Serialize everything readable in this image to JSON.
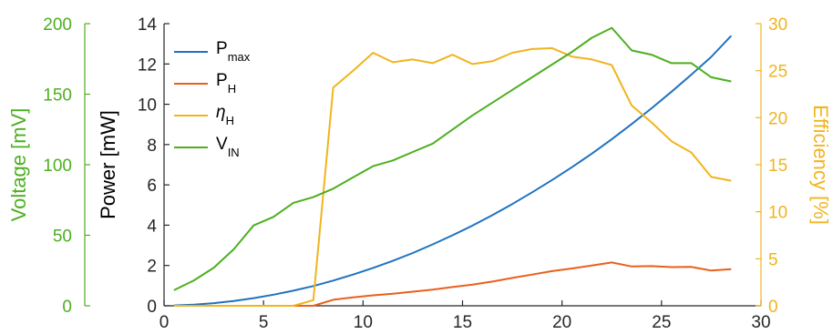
{
  "chart_data": {
    "type": "line",
    "x_axis": {
      "range": [
        0,
        30
      ],
      "ticks": [
        0,
        5,
        10,
        15,
        20,
        25,
        30
      ]
    },
    "y_axes": {
      "power": {
        "label": "Power [mW]",
        "range": [
          0,
          14
        ],
        "ticks": [
          0,
          2,
          4,
          6,
          8,
          10,
          12,
          14
        ],
        "color": "#000000"
      },
      "voltage": {
        "label": "Voltage [mV]",
        "range": [
          0,
          200
        ],
        "ticks": [
          0,
          50,
          100,
          150,
          200
        ],
        "color": "#4daf1f"
      },
      "efficiency": {
        "label": "Efficiency [%]",
        "range": [
          0,
          30
        ],
        "ticks": [
          0,
          5,
          10,
          15,
          20,
          25,
          30
        ],
        "color": "#f0b41e"
      }
    },
    "legend": {
      "placement": "top-left",
      "entries": [
        {
          "main": "P",
          "sub": "max",
          "italic": false,
          "color": "#1f72bf",
          "series": 0
        },
        {
          "main": "P",
          "sub": "H",
          "italic": false,
          "color": "#e8601c",
          "series": 1
        },
        {
          "main": "η",
          "sub": "H",
          "italic": true,
          "color": "#f0b41e",
          "series": 2
        },
        {
          "main": "V",
          "sub": "IN",
          "italic": false,
          "color": "#4daf1f",
          "series": 3
        }
      ]
    },
    "series": [
      {
        "axis": "power",
        "color": "#1f72bf",
        "points": [
          [
            0.5,
            0.02
          ],
          [
            1.5,
            0.06
          ],
          [
            2.5,
            0.13
          ],
          [
            3.5,
            0.24
          ],
          [
            4.5,
            0.38
          ],
          [
            5.5,
            0.55
          ],
          [
            6.5,
            0.75
          ],
          [
            7.5,
            0.98
          ],
          [
            8.5,
            1.25
          ],
          [
            9.5,
            1.55
          ],
          [
            10.5,
            1.88
          ],
          [
            11.5,
            2.23
          ],
          [
            12.5,
            2.62
          ],
          [
            13.5,
            3.05
          ],
          [
            14.5,
            3.5
          ],
          [
            15.5,
            3.98
          ],
          [
            16.5,
            4.5
          ],
          [
            17.5,
            5.05
          ],
          [
            18.5,
            5.63
          ],
          [
            19.5,
            6.24
          ],
          [
            20.5,
            6.88
          ],
          [
            21.5,
            7.55
          ],
          [
            22.5,
            8.27
          ],
          [
            23.5,
            9.02
          ],
          [
            24.5,
            9.8
          ],
          [
            25.5,
            10.62
          ],
          [
            26.5,
            11.47
          ],
          [
            27.5,
            12.35
          ],
          [
            28.5,
            13.4
          ]
        ]
      },
      {
        "axis": "power",
        "color": "#e8601c",
        "points": [
          [
            0.5,
            0
          ],
          [
            1.5,
            0
          ],
          [
            2.5,
            0
          ],
          [
            3.5,
            0
          ],
          [
            4.5,
            0
          ],
          [
            5.5,
            0
          ],
          [
            6.5,
            0
          ],
          [
            7.5,
            0
          ],
          [
            8.5,
            0.3
          ],
          [
            9.5,
            0.42
          ],
          [
            10.5,
            0.52
          ],
          [
            11.5,
            0.6
          ],
          [
            12.5,
            0.7
          ],
          [
            13.5,
            0.8
          ],
          [
            14.5,
            0.93
          ],
          [
            15.5,
            1.05
          ],
          [
            16.5,
            1.2
          ],
          [
            17.5,
            1.38
          ],
          [
            18.5,
            1.55
          ],
          [
            19.5,
            1.72
          ],
          [
            20.5,
            1.85
          ],
          [
            21.5,
            2.0
          ],
          [
            22.5,
            2.15
          ],
          [
            23.5,
            1.95
          ],
          [
            24.5,
            1.97
          ],
          [
            25.5,
            1.92
          ],
          [
            26.5,
            1.93
          ],
          [
            27.5,
            1.75
          ],
          [
            28.5,
            1.82
          ]
        ]
      },
      {
        "axis": "efficiency",
        "color": "#f0b41e",
        "points": [
          [
            0.5,
            0
          ],
          [
            1.5,
            0
          ],
          [
            2.5,
            0
          ],
          [
            3.5,
            0
          ],
          [
            4.5,
            0
          ],
          [
            5.5,
            0
          ],
          [
            6.5,
            0
          ],
          [
            7.5,
            0.6
          ],
          [
            8.5,
            23.2
          ],
          [
            9.5,
            25.0
          ],
          [
            10.5,
            26.9
          ],
          [
            11.5,
            25.9
          ],
          [
            12.5,
            26.2
          ],
          [
            13.5,
            25.8
          ],
          [
            14.5,
            26.7
          ],
          [
            15.5,
            25.7
          ],
          [
            16.5,
            26.0
          ],
          [
            17.5,
            26.9
          ],
          [
            18.5,
            27.3
          ],
          [
            19.5,
            27.4
          ],
          [
            20.5,
            26.5
          ],
          [
            21.5,
            26.2
          ],
          [
            22.5,
            25.6
          ],
          [
            23.5,
            21.3
          ],
          [
            24.5,
            19.5
          ],
          [
            25.5,
            17.5
          ],
          [
            26.5,
            16.3
          ],
          [
            27.5,
            13.7
          ],
          [
            28.5,
            13.3
          ]
        ]
      },
      {
        "axis": "voltage",
        "color": "#4daf1f",
        "points": [
          [
            0.5,
            11
          ],
          [
            1.5,
            18
          ],
          [
            2.5,
            27
          ],
          [
            3.5,
            40
          ],
          [
            4.5,
            57
          ],
          [
            5.5,
            63
          ],
          [
            6.5,
            73
          ],
          [
            7.5,
            77
          ],
          [
            8.5,
            83
          ],
          [
            9.5,
            91
          ],
          [
            10.5,
            99
          ],
          [
            11.5,
            103
          ],
          [
            12.5,
            109
          ],
          [
            13.5,
            115
          ],
          [
            14.5,
            125
          ],
          [
            15.5,
            135
          ],
          [
            16.5,
            144
          ],
          [
            17.5,
            153
          ],
          [
            18.5,
            162
          ],
          [
            19.5,
            171
          ],
          [
            20.5,
            180
          ],
          [
            21.5,
            190
          ],
          [
            22.5,
            197
          ],
          [
            23.5,
            181
          ],
          [
            24.5,
            178
          ],
          [
            25.5,
            172
          ],
          [
            26.5,
            172
          ],
          [
            27.5,
            162
          ],
          [
            28.5,
            159
          ]
        ]
      }
    ]
  }
}
